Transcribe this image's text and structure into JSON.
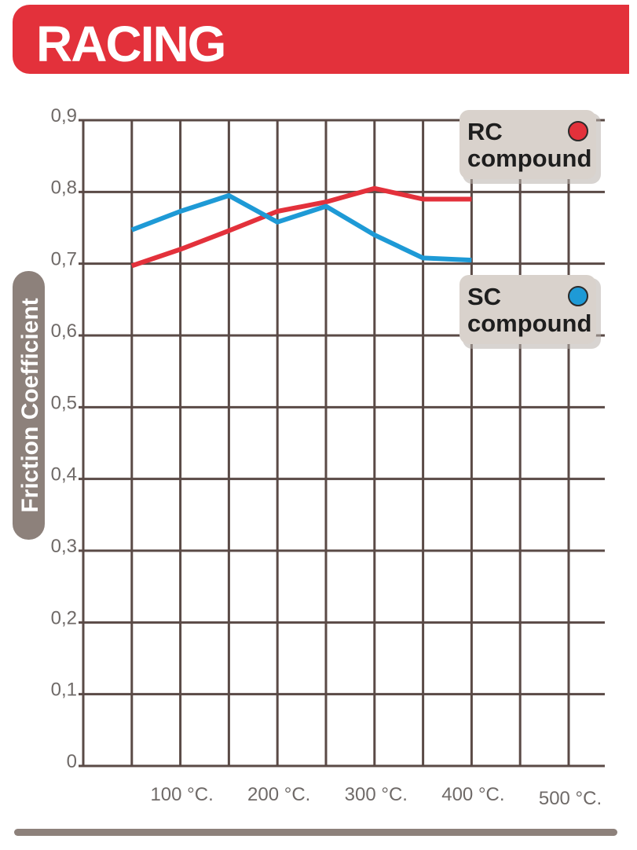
{
  "header": {
    "title": "RACING",
    "accent_color": "#e3313b"
  },
  "chart_data": {
    "type": "line",
    "ylabel": "Friction Coefficient",
    "xlabel": "",
    "y_ticks": [
      "0",
      "0,1",
      "0,2",
      "0,3",
      "0,4",
      "0,5",
      "0,6",
      "0,7",
      "0,8",
      "0,9"
    ],
    "x_ticks": [
      {
        "label": "100 °C.",
        "value": 100
      },
      {
        "label": "200 °C.",
        "value": 200
      },
      {
        "label": "300 °C.",
        "value": 300
      },
      {
        "label": "400 °C.",
        "value": 400
      },
      {
        "label": "500 °C.",
        "value": 500
      }
    ],
    "xlim": [
      0,
      550
    ],
    "ylim": [
      0,
      0.9
    ],
    "grid": true,
    "legend_position": "right",
    "series": [
      {
        "name": "RC compound",
        "color": "#e3313b",
        "x": [
          50,
          100,
          150,
          200,
          250,
          300,
          350,
          400
        ],
        "y": [
          0.697,
          0.72,
          0.746,
          0.773,
          0.786,
          0.805,
          0.79,
          0.79
        ]
      },
      {
        "name": "SC compound",
        "color": "#1e9ad6",
        "x": [
          50,
          100,
          150,
          200,
          250,
          300,
          350,
          400
        ],
        "y": [
          0.747,
          0.773,
          0.795,
          0.758,
          0.78,
          0.74,
          0.708,
          0.705
        ]
      }
    ],
    "legend": [
      {
        "line1": "RC",
        "line2": "compound",
        "color": "#e3313b"
      },
      {
        "line1": "SC",
        "line2": "compound",
        "color": "#1e9ad6"
      }
    ]
  }
}
